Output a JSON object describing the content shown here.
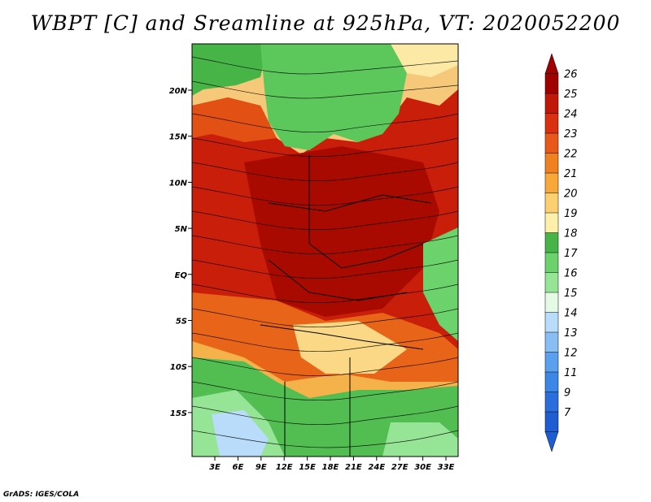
{
  "title": "WBPT [C] and Sreamline at 925hPa, VT: 2020052200",
  "credit": "GrADS: IGES/COLA",
  "map": {
    "lat_labels": [
      "20N",
      "15N",
      "10N",
      "5N",
      "EQ",
      "5S",
      "10S",
      "15S"
    ],
    "lon_labels": [
      "3E",
      "6E",
      "9E",
      "12E",
      "15E",
      "18E",
      "21E",
      "24E",
      "27E",
      "30E",
      "33E"
    ]
  },
  "colorbar": {
    "labels": [
      "26",
      "25",
      "24",
      "23",
      "22",
      "21",
      "20",
      "19",
      "18",
      "17",
      "16",
      "15",
      "14",
      "13",
      "12",
      "11",
      "9",
      "7"
    ],
    "colors": [
      "#a00000",
      "#c01808",
      "#d83010",
      "#e85818",
      "#f08020",
      "#f8a838",
      "#fcd070",
      "#fef0a8",
      "#46b446",
      "#6cd26c",
      "#96e496",
      "#e4fae4",
      "#b8dcfa",
      "#88bef4",
      "#5aa0ee",
      "#3c86e6",
      "#2a6ede",
      "#1e5cd2"
    ]
  }
}
